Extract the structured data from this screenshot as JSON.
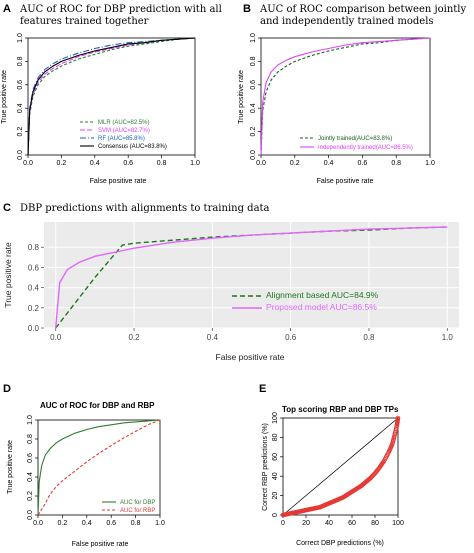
{
  "panels": {
    "A": {
      "letter": "A",
      "title1": "AUC of ROC for DBP prediction with all",
      "title2": "features trained together"
    },
    "B": {
      "letter": "B",
      "title1": "AUC of ROC comparison between jointly",
      "title2": "and independently trained models"
    },
    "C": {
      "letter": "C",
      "title1": "DBP predictions with alignments to training data"
    },
    "D": {
      "letter": "D",
      "title1": "AUC of ROC for DBP and RBP"
    },
    "E": {
      "letter": "E",
      "title1": "Top scoring RBP and DBP TPs"
    }
  },
  "chart_data": [
    {
      "id": "A",
      "type": "line",
      "xlabel": "False positive rate",
      "ylabel": "True positive rate",
      "xlim": [
        0,
        1
      ],
      "ylim": [
        0,
        1
      ],
      "xticks": [
        "0.0",
        "0.2",
        "0.4",
        "0.6",
        "0.8",
        "1.0"
      ],
      "yticks": [
        "0.0",
        "0.2",
        "0.4",
        "0.6",
        "0.8",
        "1.0"
      ],
      "legend_position": "bottom-right",
      "series": [
        {
          "name": "MLR (AUC=82.5%)",
          "color": "#2e7d32",
          "dash": "3,2",
          "x": [
            0,
            0.01,
            0.03,
            0.06,
            0.1,
            0.15,
            0.2,
            0.3,
            0.4,
            0.5,
            0.6,
            0.7,
            0.8,
            0.9,
            1.0
          ],
          "y": [
            0,
            0.35,
            0.5,
            0.6,
            0.67,
            0.72,
            0.76,
            0.82,
            0.86,
            0.9,
            0.93,
            0.95,
            0.97,
            0.99,
            1.0
          ]
        },
        {
          "name": "SVM (AUC=82.7%)",
          "color": "#e040fb",
          "dash": "5,2",
          "x": [
            0,
            0.01,
            0.03,
            0.06,
            0.1,
            0.15,
            0.2,
            0.3,
            0.4,
            0.5,
            0.6,
            0.7,
            0.8,
            0.9,
            1.0
          ],
          "y": [
            0,
            0.37,
            0.52,
            0.62,
            0.69,
            0.74,
            0.78,
            0.84,
            0.88,
            0.91,
            0.94,
            0.96,
            0.98,
            0.99,
            1.0
          ]
        },
        {
          "name": "RF (AUC=85.8%)",
          "color": "#1f5fbf",
          "dash": "6,2,1,2",
          "x": [
            0,
            0.01,
            0.03,
            0.06,
            0.1,
            0.15,
            0.2,
            0.3,
            0.4,
            0.5,
            0.6,
            0.7,
            0.8,
            0.9,
            1.0
          ],
          "y": [
            0,
            0.4,
            0.56,
            0.66,
            0.73,
            0.78,
            0.82,
            0.87,
            0.91,
            0.94,
            0.96,
            0.97,
            0.98,
            0.99,
            1.0
          ]
        },
        {
          "name": "Consensus (AUC=83.8%)",
          "color": "#000000",
          "dash": "",
          "x": [
            0,
            0.01,
            0.03,
            0.06,
            0.1,
            0.15,
            0.2,
            0.3,
            0.4,
            0.5,
            0.6,
            0.7,
            0.8,
            0.9,
            1.0
          ],
          "y": [
            0,
            0.38,
            0.54,
            0.64,
            0.71,
            0.76,
            0.8,
            0.85,
            0.89,
            0.92,
            0.95,
            0.96,
            0.98,
            0.99,
            1.0
          ]
        }
      ]
    },
    {
      "id": "B",
      "type": "line",
      "xlabel": "False positive rate",
      "ylabel": "True positive rate",
      "xlim": [
        0,
        1
      ],
      "ylim": [
        0,
        1
      ],
      "xticks": [
        "0.0",
        "0.2",
        "0.4",
        "0.6",
        "0.8",
        "1.0"
      ],
      "yticks": [
        "0.0",
        "0.2",
        "0.4",
        "0.6",
        "0.8",
        "1.0"
      ],
      "legend_position": "bottom-right",
      "series": [
        {
          "name": "Jointly trained(AUC=83.8%)",
          "color": "#1b5e20",
          "dash": "3,2",
          "x": [
            0,
            0.01,
            0.03,
            0.06,
            0.1,
            0.15,
            0.2,
            0.3,
            0.4,
            0.5,
            0.6,
            0.7,
            0.8,
            0.9,
            1.0
          ],
          "y": [
            0,
            0.38,
            0.54,
            0.64,
            0.71,
            0.76,
            0.8,
            0.85,
            0.89,
            0.92,
            0.95,
            0.96,
            0.98,
            0.99,
            1.0
          ]
        },
        {
          "name": "Independently trained(AUC=86.5%)",
          "color": "#e040fb",
          "dash": "",
          "x": [
            0,
            0.01,
            0.03,
            0.06,
            0.1,
            0.15,
            0.2,
            0.3,
            0.4,
            0.5,
            0.6,
            0.7,
            0.8,
            0.9,
            1.0
          ],
          "y": [
            0,
            0.45,
            0.62,
            0.71,
            0.77,
            0.81,
            0.84,
            0.88,
            0.91,
            0.94,
            0.96,
            0.97,
            0.98,
            0.99,
            1.0
          ]
        }
      ]
    },
    {
      "id": "C",
      "type": "line",
      "xlabel": "False positive rate",
      "ylabel": "True positive rate",
      "xlim": [
        -0.03,
        1.03
      ],
      "ylim": [
        0,
        1.05
      ],
      "xticks": [
        "0.0",
        "0.2",
        "0.4",
        "0.6",
        "0.8",
        "1.0"
      ],
      "yticks": [
        "0.0",
        "0.2",
        "0.4",
        "0.6",
        "0.8"
      ],
      "grid": true,
      "legend_position": "bottom-right",
      "series": [
        {
          "name": "Alignment based AUC=84.9%",
          "color": "#1b7a1b",
          "dash": "5,3",
          "x": [
            0,
            0.05,
            0.1,
            0.17,
            0.2,
            0.3,
            0.4,
            0.5,
            0.6,
            0.7,
            0.8,
            0.9,
            1.0
          ],
          "y": [
            0,
            0.25,
            0.5,
            0.82,
            0.84,
            0.87,
            0.9,
            0.92,
            0.94,
            0.96,
            0.97,
            0.99,
            1.0
          ]
        },
        {
          "name": "Proposed model AUC=86.5%",
          "color": "#e066ff",
          "dash": "",
          "x": [
            0,
            0.01,
            0.03,
            0.06,
            0.1,
            0.15,
            0.2,
            0.3,
            0.4,
            0.5,
            0.6,
            0.7,
            0.8,
            0.9,
            1.0
          ],
          "y": [
            0,
            0.45,
            0.58,
            0.65,
            0.71,
            0.75,
            0.79,
            0.85,
            0.89,
            0.92,
            0.94,
            0.96,
            0.98,
            0.99,
            1.0
          ]
        }
      ]
    },
    {
      "id": "D",
      "type": "line",
      "xlabel": "False positive rate",
      "ylabel": "True positive rate",
      "xlim": [
        0,
        1
      ],
      "ylim": [
        0,
        1
      ],
      "xticks": [
        "0.0",
        "0.2",
        "0.4",
        "0.6",
        "0.8",
        "1.0"
      ],
      "yticks": [
        "0.0",
        "0.2",
        "0.4",
        "0.6",
        "0.8",
        "1.0"
      ],
      "legend_position": "bottom-right",
      "series": [
        {
          "name": "AUC for DBP",
          "color": "#2e7d32",
          "dash": "",
          "x": [
            0,
            0.01,
            0.03,
            0.06,
            0.1,
            0.15,
            0.2,
            0.3,
            0.4,
            0.5,
            0.6,
            0.7,
            0.8,
            0.9,
            1.0
          ],
          "y": [
            0,
            0.35,
            0.52,
            0.63,
            0.7,
            0.76,
            0.8,
            0.86,
            0.9,
            0.93,
            0.95,
            0.97,
            0.98,
            0.99,
            1.0
          ]
        },
        {
          "name": "AUC for RBP",
          "color": "#e53935",
          "dash": "3,2",
          "x": [
            0,
            0.05,
            0.1,
            0.15,
            0.2,
            0.3,
            0.4,
            0.5,
            0.6,
            0.7,
            0.8,
            0.9,
            1.0
          ],
          "y": [
            0,
            0.1,
            0.22,
            0.3,
            0.36,
            0.46,
            0.56,
            0.65,
            0.73,
            0.81,
            0.88,
            0.95,
            1.0
          ]
        }
      ]
    },
    {
      "id": "E",
      "type": "scatter",
      "xlabel": "Correct DBP predictions (%)",
      "ylabel": "Correct RBP predictions (%)",
      "xlim": [
        0,
        100
      ],
      "ylim": [
        0,
        100
      ],
      "xticks": [
        "0",
        "20",
        "40",
        "60",
        "80",
        "100"
      ],
      "yticks": [
        "0",
        "20",
        "40",
        "60",
        "80",
        "100"
      ],
      "diagonal": true,
      "series": [
        {
          "name": "",
          "color": "#e53935",
          "marker": "circle-open",
          "x": [
            0,
            4,
            8,
            12,
            16,
            20,
            24,
            28,
            32,
            36,
            40,
            44,
            48,
            52,
            56,
            60,
            64,
            68,
            72,
            76,
            80,
            84,
            88,
            92,
            95,
            97,
            99,
            100
          ],
          "y": [
            0,
            1,
            2,
            3,
            4,
            5,
            6,
            7,
            8,
            10,
            12,
            14,
            16,
            18,
            21,
            24,
            27,
            30,
            34,
            38,
            43,
            49,
            56,
            65,
            73,
            82,
            92,
            100
          ]
        }
      ]
    }
  ]
}
